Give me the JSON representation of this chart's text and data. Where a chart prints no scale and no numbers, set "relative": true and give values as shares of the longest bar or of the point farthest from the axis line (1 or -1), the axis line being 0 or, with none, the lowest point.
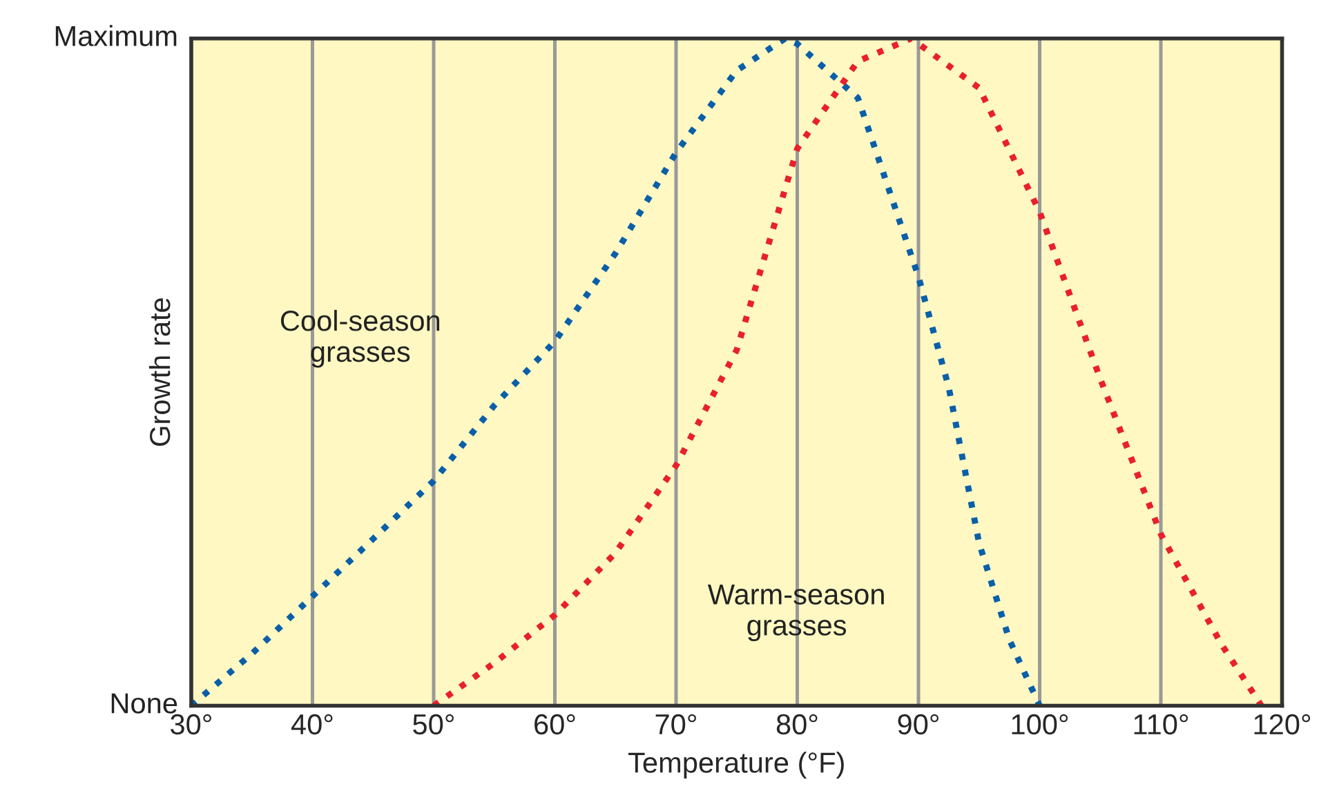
{
  "chart_data": {
    "type": "line",
    "xlabel": "Temperature (°F)",
    "ylabel": "Growth rate",
    "xlim": [
      30,
      120
    ],
    "xticks": [
      {
        "value": 30,
        "label": "30°"
      },
      {
        "value": 40,
        "label": "40°"
      },
      {
        "value": 50,
        "label": "50°"
      },
      {
        "value": 60,
        "label": "60°"
      },
      {
        "value": 70,
        "label": "70°"
      },
      {
        "value": 80,
        "label": "80°"
      },
      {
        "value": 90,
        "label": "90°"
      },
      {
        "value": 100,
        "label": "100°"
      },
      {
        "value": 110,
        "label": "110°"
      },
      {
        "value": 120,
        "label": "120°"
      }
    ],
    "relative": true,
    "annotations": [
      "Maximum",
      "None",
      "Cool-season\ngrasses",
      "Warm-season\ngrasses"
    ],
    "grid": "x",
    "line_style": "dotted",
    "marker": "none",
    "legend": false,
    "series": [
      {
        "color": "#0a5fa8",
        "x": [
          30,
          35,
          40,
          45,
          50,
          55,
          60,
          65,
          70,
          75,
          79,
          80,
          85,
          90,
          92.5,
          95,
          97.5,
          100
        ],
        "values": [
          0,
          0.078,
          0.164,
          0.25,
          0.337,
          0.45,
          0.546,
          0.678,
          0.829,
          0.952,
          1.0,
          0.992,
          0.911,
          0.643,
          0.477,
          0.244,
          0.099,
          0
        ]
      },
      {
        "color": "#e8202e",
        "x": [
          50,
          55,
          60,
          65,
          70,
          75,
          80,
          85,
          89.4,
          95,
          100,
          105,
          110,
          115,
          118.3
        ],
        "values": [
          0,
          0.064,
          0.136,
          0.229,
          0.36,
          0.533,
          0.835,
          0.966,
          1.0,
          0.926,
          0.74,
          0.49,
          0.257,
          0.092,
          0
        ]
      }
    ]
  }
}
